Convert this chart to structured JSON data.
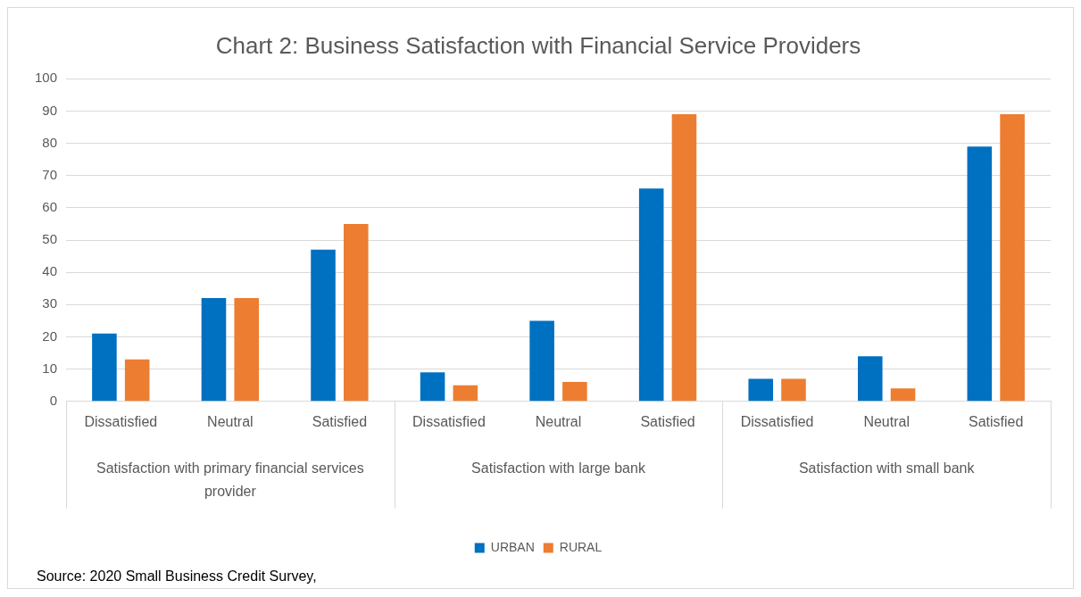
{
  "chart_data": {
    "type": "bar",
    "title": "Chart 2: Business Satisfaction with Financial Service Providers",
    "categories": [
      "Dissatisfied",
      "Neutral",
      "Satisfied",
      "Dissatisfied",
      "Neutral",
      "Satisfied",
      "Dissatisfied",
      "Neutral",
      "Satisfied"
    ],
    "series": [
      {
        "name": "URBAN",
        "color": "#0070c0",
        "values": [
          21,
          32,
          47,
          9,
          25,
          66,
          7,
          14,
          79
        ]
      },
      {
        "name": "RURAL",
        "color": "#ed7d31",
        "values": [
          13,
          32,
          55,
          5,
          6,
          89,
          7,
          4,
          89
        ]
      }
    ],
    "ylim": [
      0,
      100
    ],
    "yticks": [
      0,
      10,
      20,
      30,
      40,
      50,
      60,
      70,
      80,
      90,
      100
    ],
    "grid": "y",
    "legend": "bottom",
    "annotations": [
      "Satisfaction with primary financial services provider",
      "Satisfaction with large bank",
      "Satisfaction with small bank",
      "Source: 2020 Small Business Credit Survey,"
    ]
  }
}
